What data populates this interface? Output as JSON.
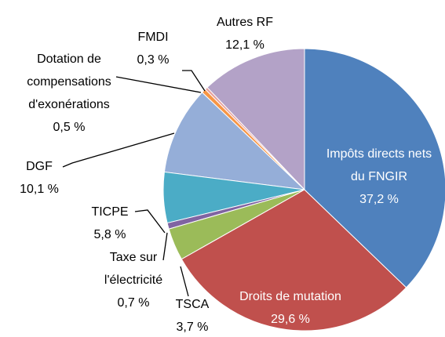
{
  "chart_data": {
    "type": "pie",
    "categories": [
      "Impôts directs nets du FNGIR",
      "Droits de mutation",
      "TSCA",
      "Taxe sur l'électricité",
      "TICPE",
      "DGF",
      "Dotation de compensations d'exonérations",
      "FMDI",
      "Autres RF"
    ],
    "values": [
      37.2,
      29.6,
      3.7,
      0.7,
      5.8,
      10.1,
      0.5,
      0.3,
      12.1
    ],
    "value_labels": [
      "37,2 %",
      "29,6 %",
      "3,7 %",
      "0,7 %",
      "5,8 %",
      "10,1 %",
      "0,5 %",
      "0,3 %",
      "12,1 %"
    ],
    "colors": [
      "#4f81bd",
      "#c0504d",
      "#9bbb59",
      "#8064a2",
      "#4bacc6",
      "#95aed8",
      "#f79646",
      "#e6a09e",
      "#b3a2c7"
    ]
  }
}
